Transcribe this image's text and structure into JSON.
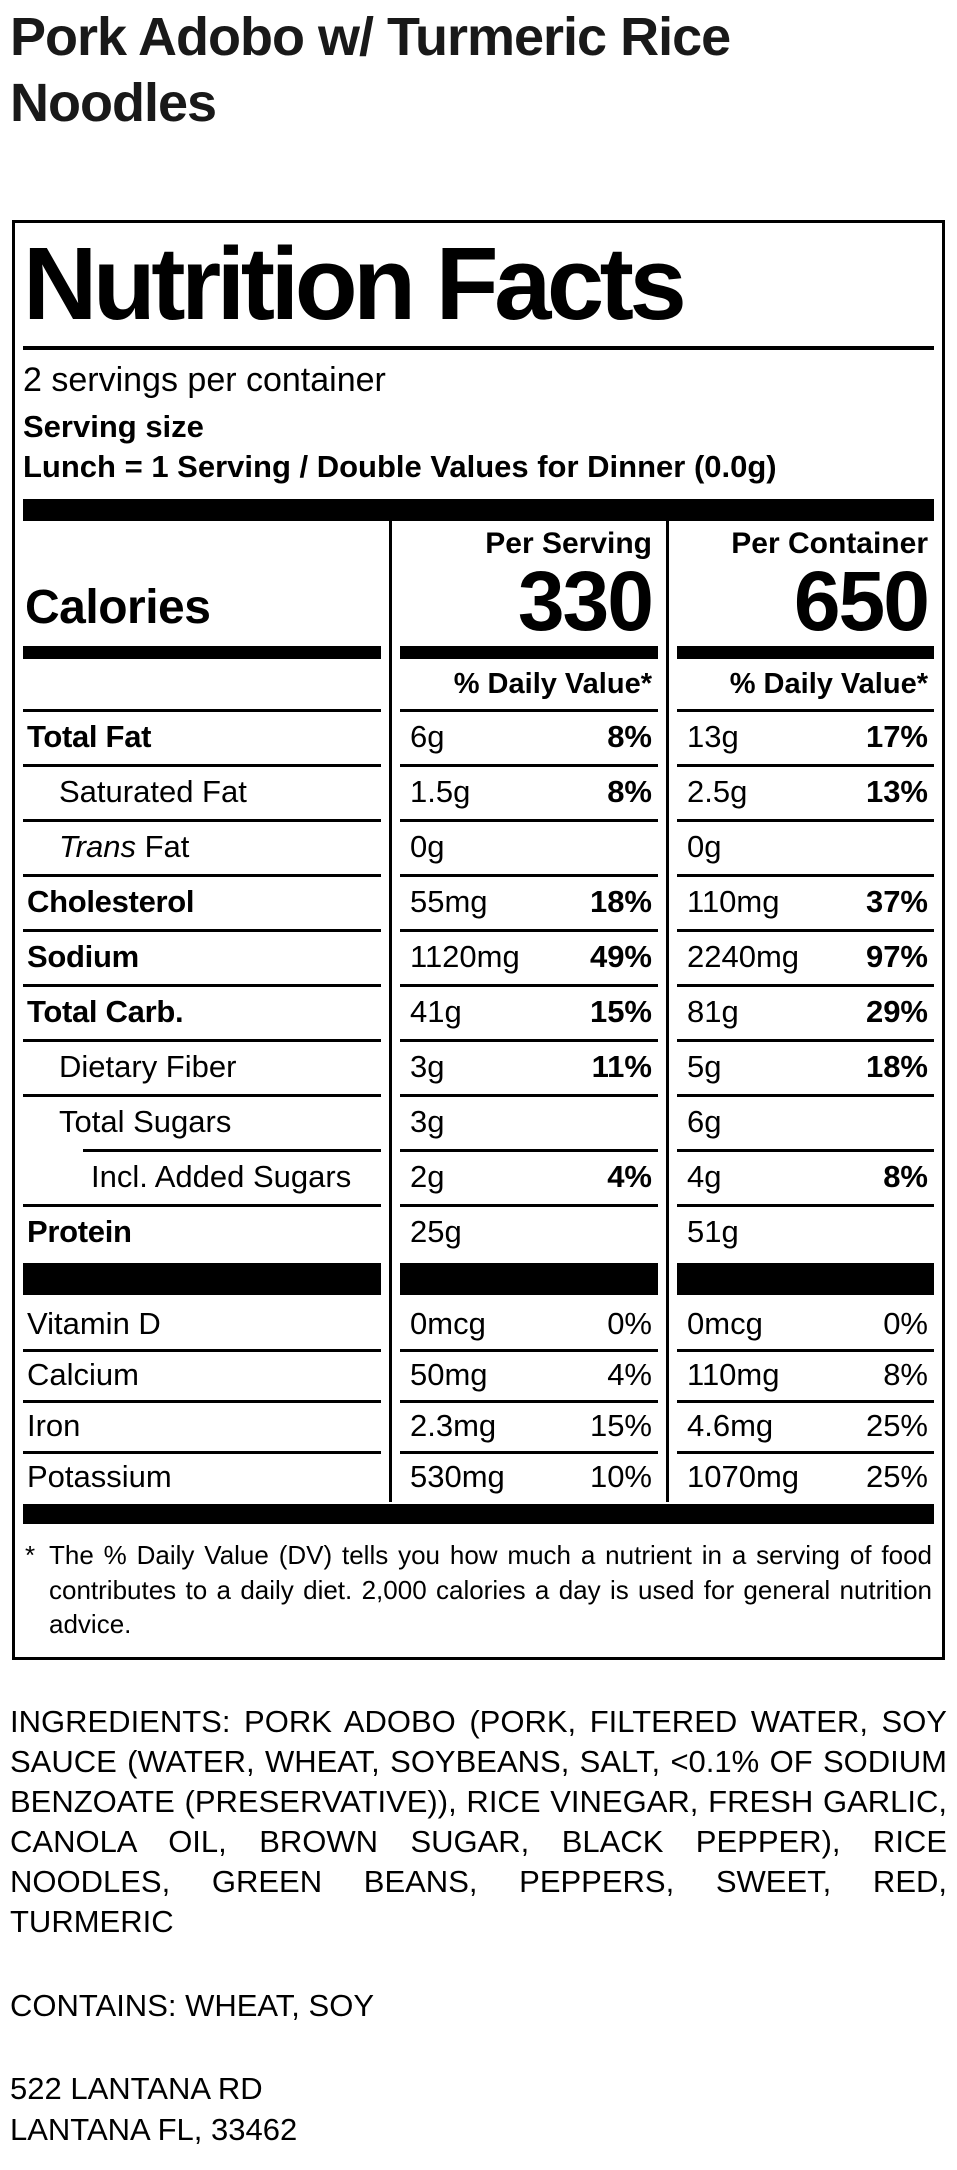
{
  "product": {
    "title": "Pork Adobo w/ Turmeric Rice Noodles"
  },
  "nutrition_label": {
    "title": "Nutrition Facts",
    "servings_per_container": "2 servings per container",
    "serving_size_label": "Serving size",
    "serving_size_value": "Lunch = 1 Serving / Double Values for Dinner (0.0g)",
    "columns": {
      "serving": "Per Serving",
      "container": "Per Container"
    },
    "calories": {
      "label": "Calories",
      "per_serving": "330",
      "per_container": "650"
    },
    "daily_value_header": "% Daily Value*",
    "rows": [
      {
        "name": "Total Fat",
        "bold": true,
        "italic_first": false,
        "indent": 0,
        "group": "main",
        "rule": "full",
        "serving_amount": "6g",
        "serving_dv": "8%",
        "container_amount": "13g",
        "container_dv": "17%",
        "dv_bold": true
      },
      {
        "name": "Saturated Fat",
        "bold": false,
        "italic_first": false,
        "indent": 1,
        "group": "main",
        "rule": "full",
        "serving_amount": "1.5g",
        "serving_dv": "8%",
        "container_amount": "2.5g",
        "container_dv": "13%",
        "dv_bold": true
      },
      {
        "name": "Trans Fat",
        "bold": false,
        "italic_first": true,
        "indent": 1,
        "group": "main",
        "rule": "full",
        "serving_amount": "0g",
        "serving_dv": "",
        "container_amount": "0g",
        "container_dv": "",
        "dv_bold": false
      },
      {
        "name": "Cholesterol",
        "bold": true,
        "italic_first": false,
        "indent": 0,
        "group": "main",
        "rule": "full",
        "serving_amount": "55mg",
        "serving_dv": "18%",
        "container_amount": "110mg",
        "container_dv": "37%",
        "dv_bold": true
      },
      {
        "name": "Sodium",
        "bold": true,
        "italic_first": false,
        "indent": 0,
        "group": "main",
        "rule": "full",
        "serving_amount": "1120mg",
        "serving_dv": "49%",
        "container_amount": "2240mg",
        "container_dv": "97%",
        "dv_bold": true
      },
      {
        "name": "Total Carb.",
        "bold": true,
        "italic_first": false,
        "indent": 0,
        "group": "main",
        "rule": "full",
        "serving_amount": "41g",
        "serving_dv": "15%",
        "container_amount": "81g",
        "container_dv": "29%",
        "dv_bold": true
      },
      {
        "name": "Dietary Fiber",
        "bold": false,
        "italic_first": false,
        "indent": 1,
        "group": "main",
        "rule": "full",
        "serving_amount": "3g",
        "serving_dv": "11%",
        "container_amount": "5g",
        "container_dv": "18%",
        "dv_bold": true
      },
      {
        "name": "Total Sugars",
        "bold": false,
        "italic_first": false,
        "indent": 1,
        "group": "main",
        "rule": "full",
        "serving_amount": "3g",
        "serving_dv": "",
        "container_amount": "6g",
        "container_dv": "",
        "dv_bold": false
      },
      {
        "name": "Incl. Added Sugars",
        "bold": false,
        "italic_first": false,
        "indent": 2,
        "group": "main",
        "rule": "indent",
        "serving_amount": "2g",
        "serving_dv": "4%",
        "container_amount": "4g",
        "container_dv": "8%",
        "dv_bold": true
      },
      {
        "name": "Protein",
        "bold": true,
        "italic_first": false,
        "indent": 0,
        "group": "main",
        "rule": "full",
        "serving_amount": "25g",
        "serving_dv": "",
        "container_amount": "51g",
        "container_dv": "",
        "dv_bold": false
      },
      {
        "name": "Vitamin D",
        "bold": false,
        "italic_first": false,
        "indent": 0,
        "group": "vitamin",
        "rule": "none",
        "serving_amount": "0mcg",
        "serving_dv": "0%",
        "container_amount": "0mcg",
        "container_dv": "0%",
        "dv_bold": false
      },
      {
        "name": "Calcium",
        "bold": false,
        "italic_first": false,
        "indent": 0,
        "group": "vitamin",
        "rule": "full",
        "serving_amount": "50mg",
        "serving_dv": "4%",
        "container_amount": "110mg",
        "container_dv": "8%",
        "dv_bold": false
      },
      {
        "name": "Iron",
        "bold": false,
        "italic_first": false,
        "indent": 0,
        "group": "vitamin",
        "rule": "full",
        "serving_amount": "2.3mg",
        "serving_dv": "15%",
        "container_amount": "4.6mg",
        "container_dv": "25%",
        "dv_bold": false
      },
      {
        "name": "Potassium",
        "bold": false,
        "italic_first": false,
        "indent": 0,
        "group": "vitamin",
        "rule": "full",
        "serving_amount": "530mg",
        "serving_dv": "10%",
        "container_amount": "1070mg",
        "container_dv": "25%",
        "dv_bold": false
      }
    ],
    "footnote_symbol": "*",
    "footnote": "The % Daily Value (DV) tells you how much a nutrient in a serving of food contributes to a daily diet. 2,000 calories a day is used for general nutrition advice."
  },
  "ingredients": "INGREDIENTS: PORK ADOBO (PORK, FILTERED WATER, SOY SAUCE (WATER, WHEAT, SOYBEANS, SALT, <0.1% OF SODIUM BENZOATE (PRESERVATIVE)), RICE VINEGAR, FRESH GARLIC, CANOLA OIL, BROWN SUGAR, BLACK PEPPER), RICE NOODLES, GREEN BEANS, PEPPERS, SWEET, RED, TURMERIC",
  "contains": "CONTAINS: WHEAT, SOY",
  "address": {
    "line1": "522 LANTANA RD",
    "line2": "LANTANA FL, 33462"
  }
}
